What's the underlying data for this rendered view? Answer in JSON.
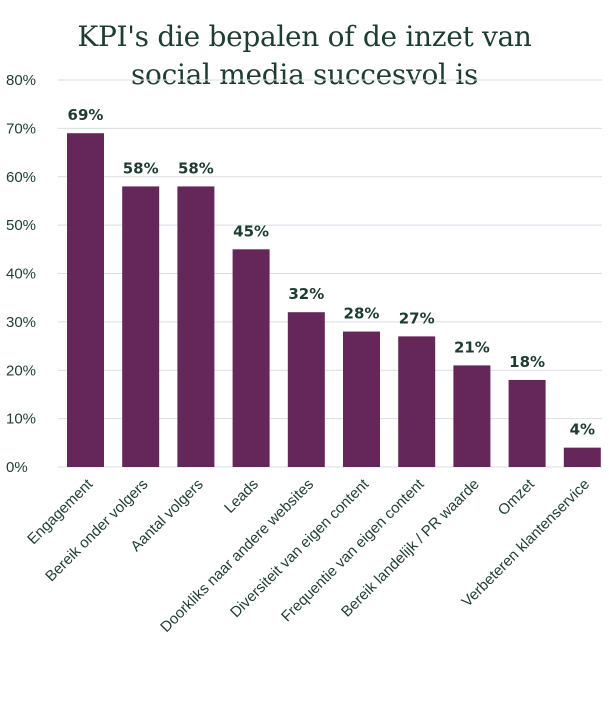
{
  "chart_data": {
    "type": "bar",
    "title_lines": [
      "KPI's die bepalen of de inzet van",
      "social media succesvol is"
    ],
    "categories": [
      "Engagement",
      "Bereik onder volgers",
      "Aantal volgers",
      "Leads",
      "Doorkliks naar andere websites",
      "Diversiteit van eigen content",
      "Frequentie van eigen content",
      "Bereik landelijk / PR waarde",
      "Omzet",
      "Verbeteren klantenservice"
    ],
    "values": [
      69,
      58,
      58,
      45,
      32,
      28,
      27,
      21,
      18,
      4
    ],
    "value_labels": [
      "69%",
      "58%",
      "58%",
      "45%",
      "32%",
      "28%",
      "27%",
      "21%",
      "18%",
      "4%"
    ],
    "y_ticks": [
      "0%",
      "10%",
      "20%",
      "30%",
      "40%",
      "50%",
      "60%",
      "70%",
      "80%"
    ],
    "ylim": [
      0,
      80
    ],
    "grid": true,
    "bar_color": "#65265a",
    "text_color": "#1e3d32"
  }
}
